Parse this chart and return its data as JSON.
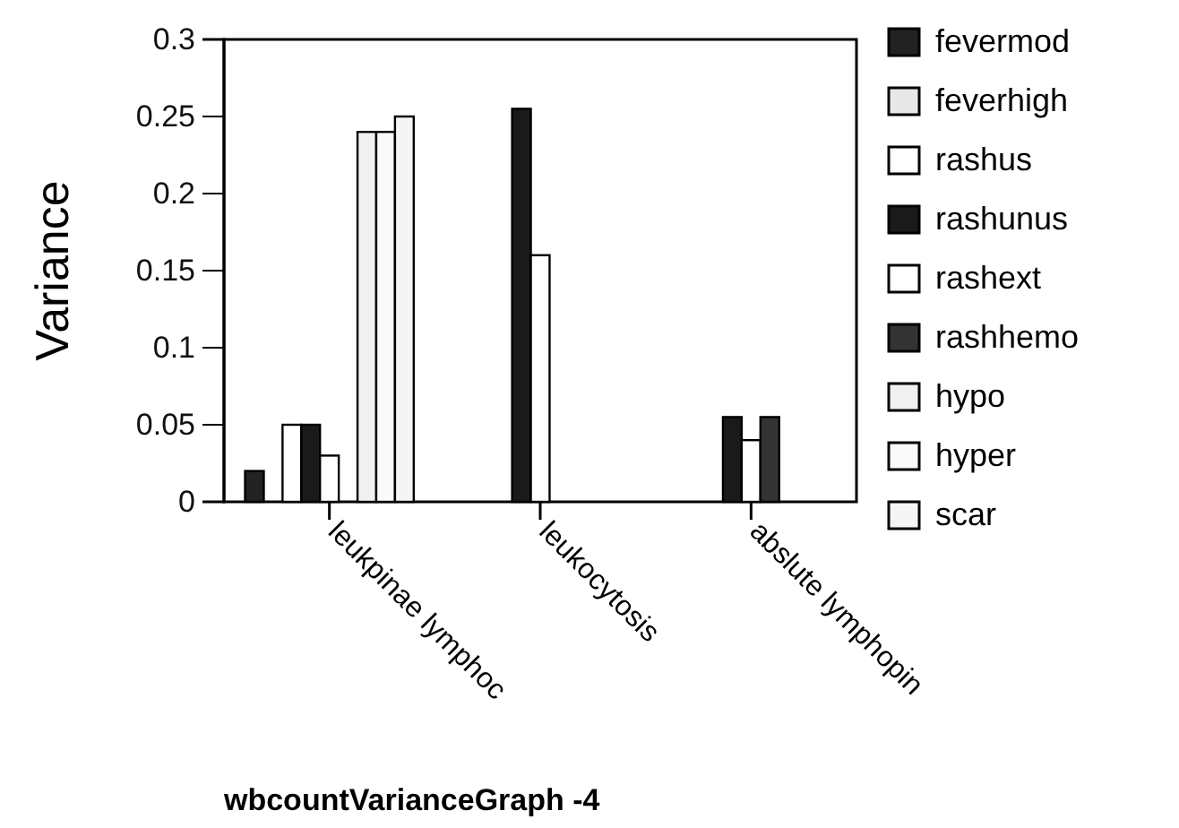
{
  "chart_data": {
    "type": "bar",
    "title": "wbcountVarianceGraph -4",
    "ylabel": "Variance",
    "categories": [
      "leukpinae lymphoc",
      "leukocytosis",
      "abslute lymphopin"
    ],
    "ylim": [
      0,
      0.3
    ],
    "yticks": [
      0,
      0.05,
      0.1,
      0.15,
      0.2,
      0.25,
      0.3
    ],
    "legend": "right",
    "grid": false,
    "series": [
      {
        "name": "fevermod",
        "color": "#222222",
        "values": [
          0.02,
          null,
          null
        ]
      },
      {
        "name": "feverhigh",
        "color": "#e8e8e8",
        "values": [
          null,
          null,
          null
        ]
      },
      {
        "name": "rashus",
        "color": "#ffffff",
        "values": [
          0.05,
          null,
          null
        ]
      },
      {
        "name": "rashunus",
        "color": "#1a1a1a",
        "values": [
          0.05,
          0.255,
          0.055
        ]
      },
      {
        "name": "rashext",
        "color": "#ffffff",
        "values": [
          0.03,
          0.16,
          0.04
        ]
      },
      {
        "name": "rashhemo",
        "color": "#333333",
        "values": [
          null,
          null,
          0.055
        ]
      },
      {
        "name": "hypo",
        "color": "#f0f0f0",
        "values": [
          0.24,
          null,
          null
        ]
      },
      {
        "name": "hyper",
        "color": "#fafafa",
        "values": [
          0.24,
          null,
          null
        ]
      },
      {
        "name": "scar",
        "color": "#f5f5f5",
        "values": [
          0.25,
          null,
          null
        ]
      }
    ]
  }
}
